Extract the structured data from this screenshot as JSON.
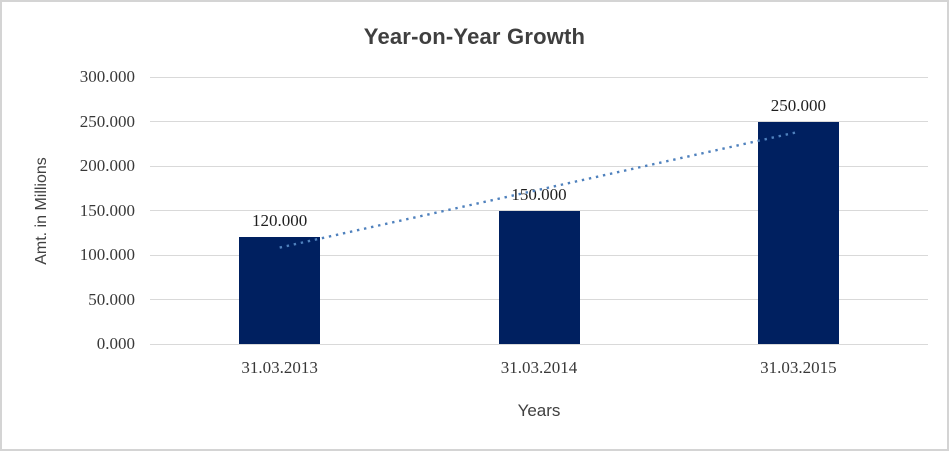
{
  "window": {
    "background": "#ffffff",
    "border_color": "#d4d4d4"
  },
  "chart_data": {
    "type": "bar",
    "title": "Year-on-Year Growth",
    "xlabel": "Years",
    "ylabel": "Amt. in Millions",
    "categories": [
      "31.03.2013",
      "31.03.2014",
      "31.03.2015"
    ],
    "values": [
      120,
      150,
      250
    ],
    "value_labels": [
      "120.000",
      "150.000",
      "250.000"
    ],
    "ylim": [
      0,
      300
    ],
    "ytick_step": 50,
    "ytick_labels": [
      "0.000",
      "50.000",
      "100.000",
      "150.000",
      "200.000",
      "250.000",
      "300.000"
    ],
    "grid": "horizontal-only",
    "legend": "none",
    "bar_color": "#002060",
    "gridline_color": "#d9d9d9",
    "axis_text_color": "#383838",
    "title_color": "#3f3f3f",
    "trendline": {
      "type": "linear",
      "style": "dotted",
      "color": "#4f81bd",
      "value_at_first_category": 108.33,
      "value_at_last_category": 238.33
    }
  }
}
